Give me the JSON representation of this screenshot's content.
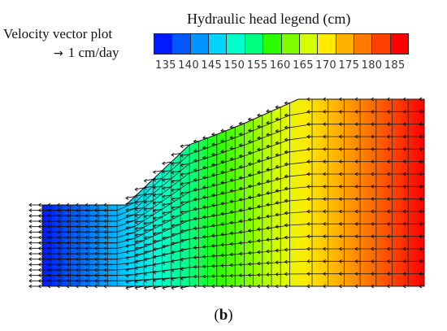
{
  "velocity_legend": {
    "title": "Velocity vector plot",
    "scale_label": "1 cm/day",
    "arrow_icon": "right-arrow-icon"
  },
  "head_legend": {
    "title": "Hydraulic head legend (cm)",
    "ticks": [
      "135",
      "140",
      "145",
      "150",
      "155",
      "160",
      "165",
      "170",
      "175",
      "180",
      "185"
    ],
    "colors": [
      "#0019ff",
      "#0057ff",
      "#0095ff",
      "#00d4ff",
      "#00ffcc",
      "#00ff80",
      "#2aff00",
      "#80ff00",
      "#d4ff00",
      "#ffea00",
      "#ffb300",
      "#ff7a00",
      "#ff4000",
      "#ff0000"
    ]
  },
  "caption": {
    "open": "(",
    "letter": "b",
    "close": ")"
  }
}
